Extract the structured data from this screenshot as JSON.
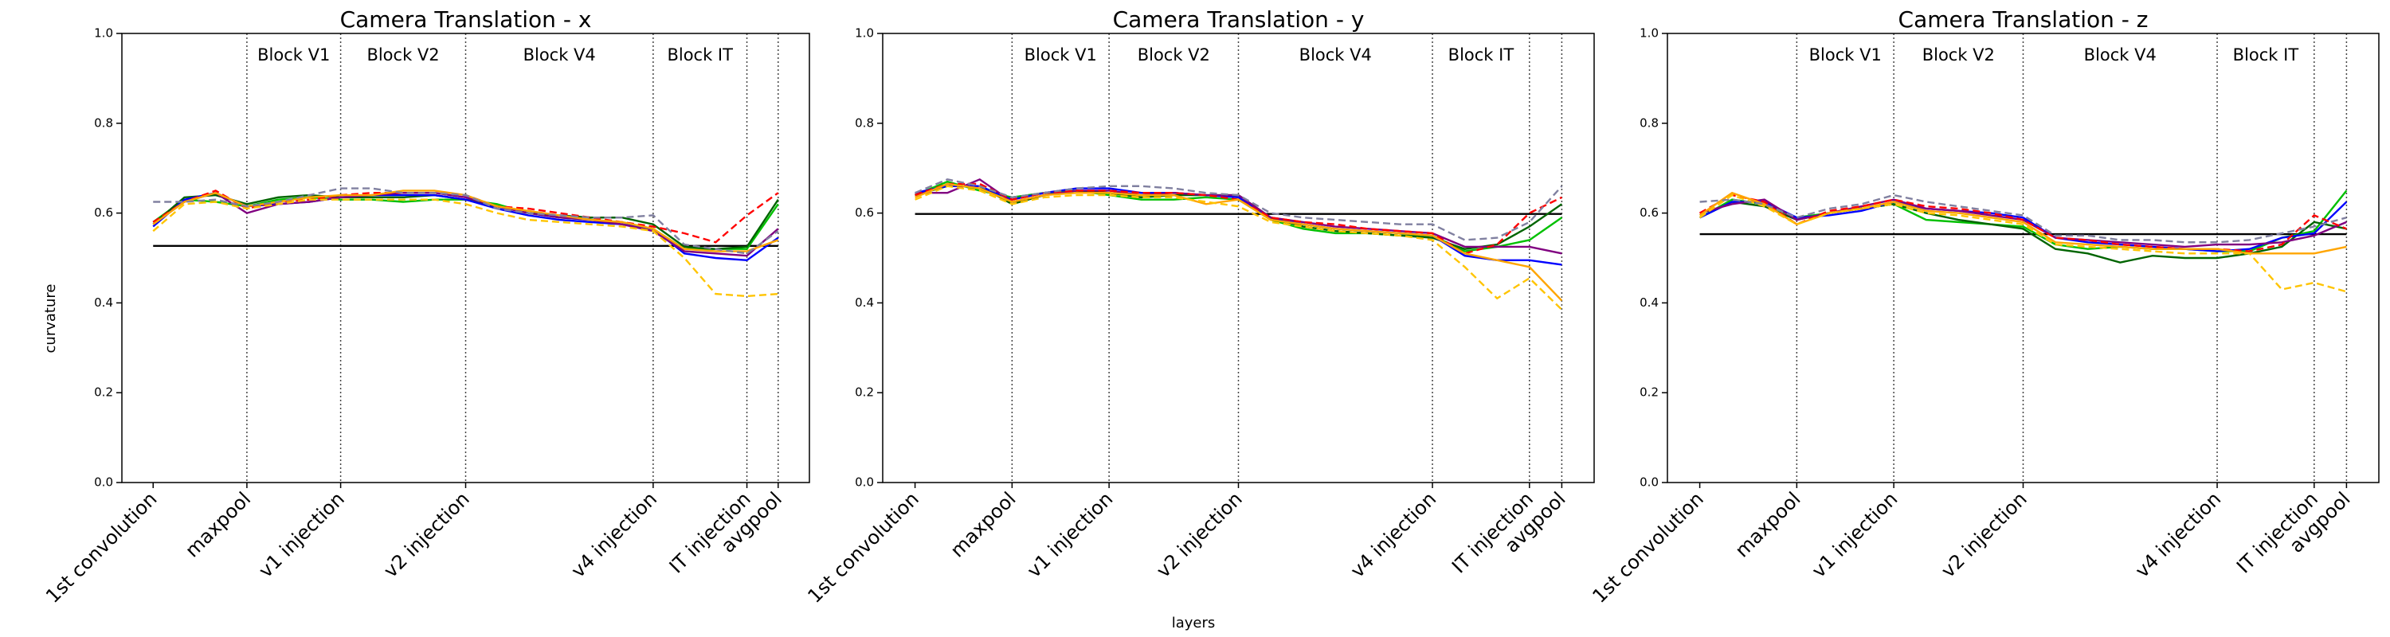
{
  "figure": {
    "xlabel": "layers",
    "ylabel": "curvature"
  },
  "chart_data": [
    {
      "type": "line",
      "title": "Camera Translation - x",
      "x": [
        0,
        1,
        2,
        3,
        4,
        5,
        6,
        7,
        8,
        9,
        10,
        11,
        12,
        13,
        14,
        15,
        16,
        17,
        18,
        19,
        20
      ],
      "xlim": [
        -1,
        21
      ],
      "xticks": [
        {
          "value": 0,
          "label": "1st convolution"
        },
        {
          "value": 3,
          "label": "maxpool"
        },
        {
          "value": 6,
          "label": "v1 injection"
        },
        {
          "value": 10,
          "label": "v2 injection"
        },
        {
          "value": 16,
          "label": "v4 injection"
        },
        {
          "value": 19,
          "label": "IT injection"
        },
        {
          "value": 20,
          "label": "avgpool"
        }
      ],
      "ylim": [
        0,
        1
      ],
      "yticks": [
        {
          "value": 0,
          "label": "0.0"
        },
        {
          "value": 0.2,
          "label": "0.2"
        },
        {
          "value": 0.4,
          "label": "0.4"
        },
        {
          "value": 0.6,
          "label": "0.6"
        },
        {
          "value": 0.8,
          "label": "0.8"
        },
        {
          "value": 1,
          "label": "1.0"
        }
      ],
      "hline": {
        "value": 0.527,
        "color": "#000000"
      },
      "annotations": [
        {
          "text": "Block V1",
          "x": 4.5,
          "y": 0.95
        },
        {
          "text": "Block V2",
          "x": 8,
          "y": 0.95
        },
        {
          "text": "Block V4",
          "x": 13,
          "y": 0.95
        },
        {
          "text": "Block IT",
          "x": 17.5,
          "y": 0.95
        }
      ],
      "series": [
        {
          "color": "#00c000",
          "dash": false,
          "values": [
            0.58,
            0.63,
            0.625,
            0.615,
            0.63,
            0.635,
            0.63,
            0.63,
            0.625,
            0.63,
            0.63,
            0.62,
            0.6,
            0.59,
            0.585,
            0.58,
            0.565,
            0.52,
            0.52,
            0.52,
            0.62
          ]
        },
        {
          "color": "#006400",
          "dash": false,
          "values": [
            0.575,
            0.635,
            0.64,
            0.62,
            0.635,
            0.64,
            0.635,
            0.635,
            0.635,
            0.64,
            0.63,
            0.615,
            0.6,
            0.595,
            0.59,
            0.59,
            0.575,
            0.525,
            0.52,
            0.525,
            0.63
          ]
        },
        {
          "color": "#0000ff",
          "dash": false,
          "values": [
            0.57,
            0.63,
            0.645,
            0.615,
            0.62,
            0.625,
            0.635,
            0.64,
            0.64,
            0.64,
            0.63,
            0.61,
            0.595,
            0.585,
            0.58,
            0.575,
            0.565,
            0.51,
            0.5,
            0.495,
            0.545
          ]
        },
        {
          "color": "#800080",
          "dash": false,
          "values": [
            0.575,
            0.625,
            0.645,
            0.6,
            0.62,
            0.625,
            0.635,
            0.64,
            0.645,
            0.645,
            0.635,
            0.615,
            0.6,
            0.59,
            0.585,
            0.575,
            0.56,
            0.515,
            0.51,
            0.505,
            0.565
          ]
        },
        {
          "color": "#ff0000",
          "dash": true,
          "values": [
            0.58,
            0.625,
            0.65,
            0.61,
            0.625,
            0.63,
            0.64,
            0.645,
            0.645,
            0.645,
            0.64,
            0.615,
            0.61,
            0.6,
            0.59,
            0.58,
            0.57,
            0.555,
            0.535,
            0.595,
            0.645
          ]
        },
        {
          "color": "#ffa500",
          "dash": false,
          "values": [
            0.575,
            0.625,
            0.645,
            0.615,
            0.625,
            0.635,
            0.64,
            0.64,
            0.65,
            0.65,
            0.64,
            0.615,
            0.605,
            0.595,
            0.585,
            0.58,
            0.565,
            0.52,
            0.515,
            0.515,
            0.54
          ]
        },
        {
          "color": "#ffc400",
          "dash": true,
          "values": [
            0.56,
            0.62,
            0.625,
            0.61,
            0.62,
            0.63,
            0.63,
            0.63,
            0.63,
            0.63,
            0.62,
            0.6,
            0.585,
            0.58,
            0.575,
            0.57,
            0.56,
            0.5,
            0.42,
            0.415,
            0.42
          ]
        },
        {
          "color": "#8080a0",
          "dash": true,
          "values": [
            0.625,
            0.625,
            0.63,
            0.615,
            0.625,
            0.64,
            0.655,
            0.655,
            0.645,
            0.645,
            0.64,
            0.61,
            0.6,
            0.595,
            0.59,
            0.59,
            0.595,
            0.53,
            0.52,
            0.51,
            0.56
          ]
        }
      ]
    },
    {
      "type": "line",
      "title": "Camera Translation - y",
      "x": [
        0,
        1,
        2,
        3,
        4,
        5,
        6,
        7,
        8,
        9,
        10,
        11,
        12,
        13,
        14,
        15,
        16,
        17,
        18,
        19,
        20
      ],
      "xlim": [
        -1,
        21
      ],
      "xticks": [
        {
          "value": 0,
          "label": "1st convolution"
        },
        {
          "value": 3,
          "label": "maxpool"
        },
        {
          "value": 6,
          "label": "v1 injection"
        },
        {
          "value": 10,
          "label": "v2 injection"
        },
        {
          "value": 16,
          "label": "v4 injection"
        },
        {
          "value": 19,
          "label": "IT injection"
        },
        {
          "value": 20,
          "label": "avgpool"
        }
      ],
      "ylim": [
        0,
        1
      ],
      "yticks": [
        {
          "value": 0,
          "label": "0.0"
        },
        {
          "value": 0.2,
          "label": "0.2"
        },
        {
          "value": 0.4,
          "label": "0.4"
        },
        {
          "value": 0.6,
          "label": "0.6"
        },
        {
          "value": 0.8,
          "label": "0.8"
        },
        {
          "value": 1,
          "label": "1.0"
        }
      ],
      "hline": {
        "value": 0.598,
        "color": "#000000"
      },
      "annotations": [
        {
          "text": "Block V1",
          "x": 4.5,
          "y": 0.95
        },
        {
          "text": "Block V2",
          "x": 8,
          "y": 0.95
        },
        {
          "text": "Block V4",
          "x": 13,
          "y": 0.95
        },
        {
          "text": "Block IT",
          "x": 17.5,
          "y": 0.95
        }
      ],
      "series": [
        {
          "color": "#00c000",
          "dash": false,
          "values": [
            0.64,
            0.67,
            0.65,
            0.635,
            0.645,
            0.65,
            0.64,
            0.63,
            0.63,
            0.635,
            0.63,
            0.585,
            0.565,
            0.555,
            0.555,
            0.55,
            0.55,
            0.515,
            0.525,
            0.54,
            0.59
          ]
        },
        {
          "color": "#006400",
          "dash": false,
          "values": [
            0.64,
            0.66,
            0.66,
            0.62,
            0.64,
            0.65,
            0.645,
            0.635,
            0.64,
            0.64,
            0.64,
            0.59,
            0.57,
            0.56,
            0.555,
            0.55,
            0.545,
            0.52,
            0.53,
            0.57,
            0.62
          ]
        },
        {
          "color": "#0000ff",
          "dash": false,
          "values": [
            0.645,
            0.66,
            0.66,
            0.63,
            0.645,
            0.655,
            0.655,
            0.645,
            0.645,
            0.64,
            0.635,
            0.59,
            0.575,
            0.565,
            0.56,
            0.555,
            0.55,
            0.505,
            0.495,
            0.495,
            0.485
          ]
        },
        {
          "color": "#800080",
          "dash": false,
          "values": [
            0.645,
            0.645,
            0.675,
            0.625,
            0.64,
            0.65,
            0.65,
            0.64,
            0.645,
            0.64,
            0.64,
            0.59,
            0.58,
            0.57,
            0.565,
            0.56,
            0.555,
            0.525,
            0.525,
            0.525,
            0.51
          ]
        },
        {
          "color": "#ff0000",
          "dash": true,
          "values": [
            0.64,
            0.665,
            0.665,
            0.63,
            0.645,
            0.65,
            0.65,
            0.645,
            0.645,
            0.64,
            0.63,
            0.59,
            0.58,
            0.575,
            0.565,
            0.56,
            0.555,
            0.51,
            0.53,
            0.6,
            0.635
          ]
        },
        {
          "color": "#ffa500",
          "dash": false,
          "values": [
            0.635,
            0.665,
            0.655,
            0.625,
            0.64,
            0.645,
            0.645,
            0.64,
            0.64,
            0.62,
            0.63,
            0.585,
            0.575,
            0.565,
            0.56,
            0.555,
            0.55,
            0.51,
            0.495,
            0.48,
            0.405
          ]
        },
        {
          "color": "#ffc400",
          "dash": true,
          "values": [
            0.63,
            0.66,
            0.65,
            0.62,
            0.635,
            0.64,
            0.64,
            0.635,
            0.635,
            0.625,
            0.615,
            0.58,
            0.57,
            0.56,
            0.555,
            0.55,
            0.54,
            0.48,
            0.41,
            0.455,
            0.385
          ]
        },
        {
          "color": "#8080a0",
          "dash": true,
          "values": [
            0.645,
            0.675,
            0.66,
            0.635,
            0.645,
            0.655,
            0.66,
            0.66,
            0.655,
            0.645,
            0.64,
            0.6,
            0.59,
            0.585,
            0.58,
            0.575,
            0.575,
            0.54,
            0.545,
            0.58,
            0.66
          ]
        }
      ]
    },
    {
      "type": "line",
      "title": "Camera Translation - z",
      "x": [
        0,
        1,
        2,
        3,
        4,
        5,
        6,
        7,
        8,
        9,
        10,
        11,
        12,
        13,
        14,
        15,
        16,
        17,
        18,
        19,
        20
      ],
      "xlim": [
        -1,
        21
      ],
      "xticks": [
        {
          "value": 0,
          "label": "1st convolution"
        },
        {
          "value": 3,
          "label": "maxpool"
        },
        {
          "value": 6,
          "label": "v1 injection"
        },
        {
          "value": 10,
          "label": "v2 injection"
        },
        {
          "value": 16,
          "label": "v4 injection"
        },
        {
          "value": 19,
          "label": "IT injection"
        },
        {
          "value": 20,
          "label": "avgpool"
        }
      ],
      "ylim": [
        0,
        1
      ],
      "yticks": [
        {
          "value": 0,
          "label": "0.0"
        },
        {
          "value": 0.2,
          "label": "0.2"
        },
        {
          "value": 0.4,
          "label": "0.4"
        },
        {
          "value": 0.6,
          "label": "0.6"
        },
        {
          "value": 0.8,
          "label": "0.8"
        },
        {
          "value": 1,
          "label": "1.0"
        }
      ],
      "hline": {
        "value": 0.553,
        "color": "#000000"
      },
      "annotations": [
        {
          "text": "Block V1",
          "x": 4.5,
          "y": 0.95
        },
        {
          "text": "Block V2",
          "x": 8,
          "y": 0.95
        },
        {
          "text": "Block V4",
          "x": 13,
          "y": 0.95
        },
        {
          "text": "Block IT",
          "x": 17.5,
          "y": 0.95
        }
      ],
      "series": [
        {
          "color": "#00c000",
          "dash": false,
          "values": [
            0.59,
            0.63,
            0.62,
            0.59,
            0.6,
            0.61,
            0.62,
            0.585,
            0.58,
            0.575,
            0.57,
            0.53,
            0.52,
            0.525,
            0.52,
            0.52,
            0.515,
            0.515,
            0.545,
            0.56,
            0.65
          ]
        },
        {
          "color": "#006400",
          "dash": false,
          "values": [
            0.59,
            0.625,
            0.615,
            0.585,
            0.6,
            0.61,
            0.62,
            0.6,
            0.585,
            0.575,
            0.565,
            0.52,
            0.51,
            0.49,
            0.505,
            0.5,
            0.5,
            0.51,
            0.525,
            0.58,
            0.565
          ]
        },
        {
          "color": "#0000ff",
          "dash": false,
          "values": [
            0.59,
            0.625,
            0.625,
            0.59,
            0.595,
            0.605,
            0.625,
            0.61,
            0.605,
            0.6,
            0.59,
            0.545,
            0.535,
            0.53,
            0.525,
            0.52,
            0.515,
            0.52,
            0.545,
            0.555,
            0.625
          ]
        },
        {
          "color": "#800080",
          "dash": false,
          "values": [
            0.6,
            0.62,
            0.63,
            0.585,
            0.6,
            0.615,
            0.63,
            0.61,
            0.605,
            0.595,
            0.585,
            0.545,
            0.54,
            0.535,
            0.53,
            0.525,
            0.53,
            0.53,
            0.535,
            0.55,
            0.58
          ]
        },
        {
          "color": "#ff0000",
          "dash": true,
          "values": [
            0.6,
            0.64,
            0.625,
            0.575,
            0.605,
            0.615,
            0.63,
            0.615,
            0.61,
            0.6,
            0.585,
            0.545,
            0.54,
            0.53,
            0.525,
            0.52,
            0.52,
            0.515,
            0.53,
            0.595,
            0.565
          ]
        },
        {
          "color": "#ffa500",
          "dash": false,
          "values": [
            0.595,
            0.645,
            0.62,
            0.575,
            0.6,
            0.61,
            0.625,
            0.605,
            0.6,
            0.59,
            0.58,
            0.535,
            0.53,
            0.525,
            0.52,
            0.52,
            0.52,
            0.51,
            0.51,
            0.51,
            0.525
          ]
        },
        {
          "color": "#ffc400",
          "dash": true,
          "values": [
            0.59,
            0.64,
            0.615,
            0.575,
            0.6,
            0.61,
            0.62,
            0.6,
            0.595,
            0.585,
            0.575,
            0.53,
            0.525,
            0.52,
            0.515,
            0.51,
            0.51,
            0.51,
            0.43,
            0.445,
            0.425
          ]
        },
        {
          "color": "#8080a0",
          "dash": true,
          "values": [
            0.625,
            0.63,
            0.62,
            0.59,
            0.61,
            0.62,
            0.64,
            0.625,
            0.615,
            0.605,
            0.595,
            0.55,
            0.55,
            0.54,
            0.54,
            0.535,
            0.535,
            0.54,
            0.555,
            0.57,
            0.59
          ]
        }
      ]
    }
  ]
}
